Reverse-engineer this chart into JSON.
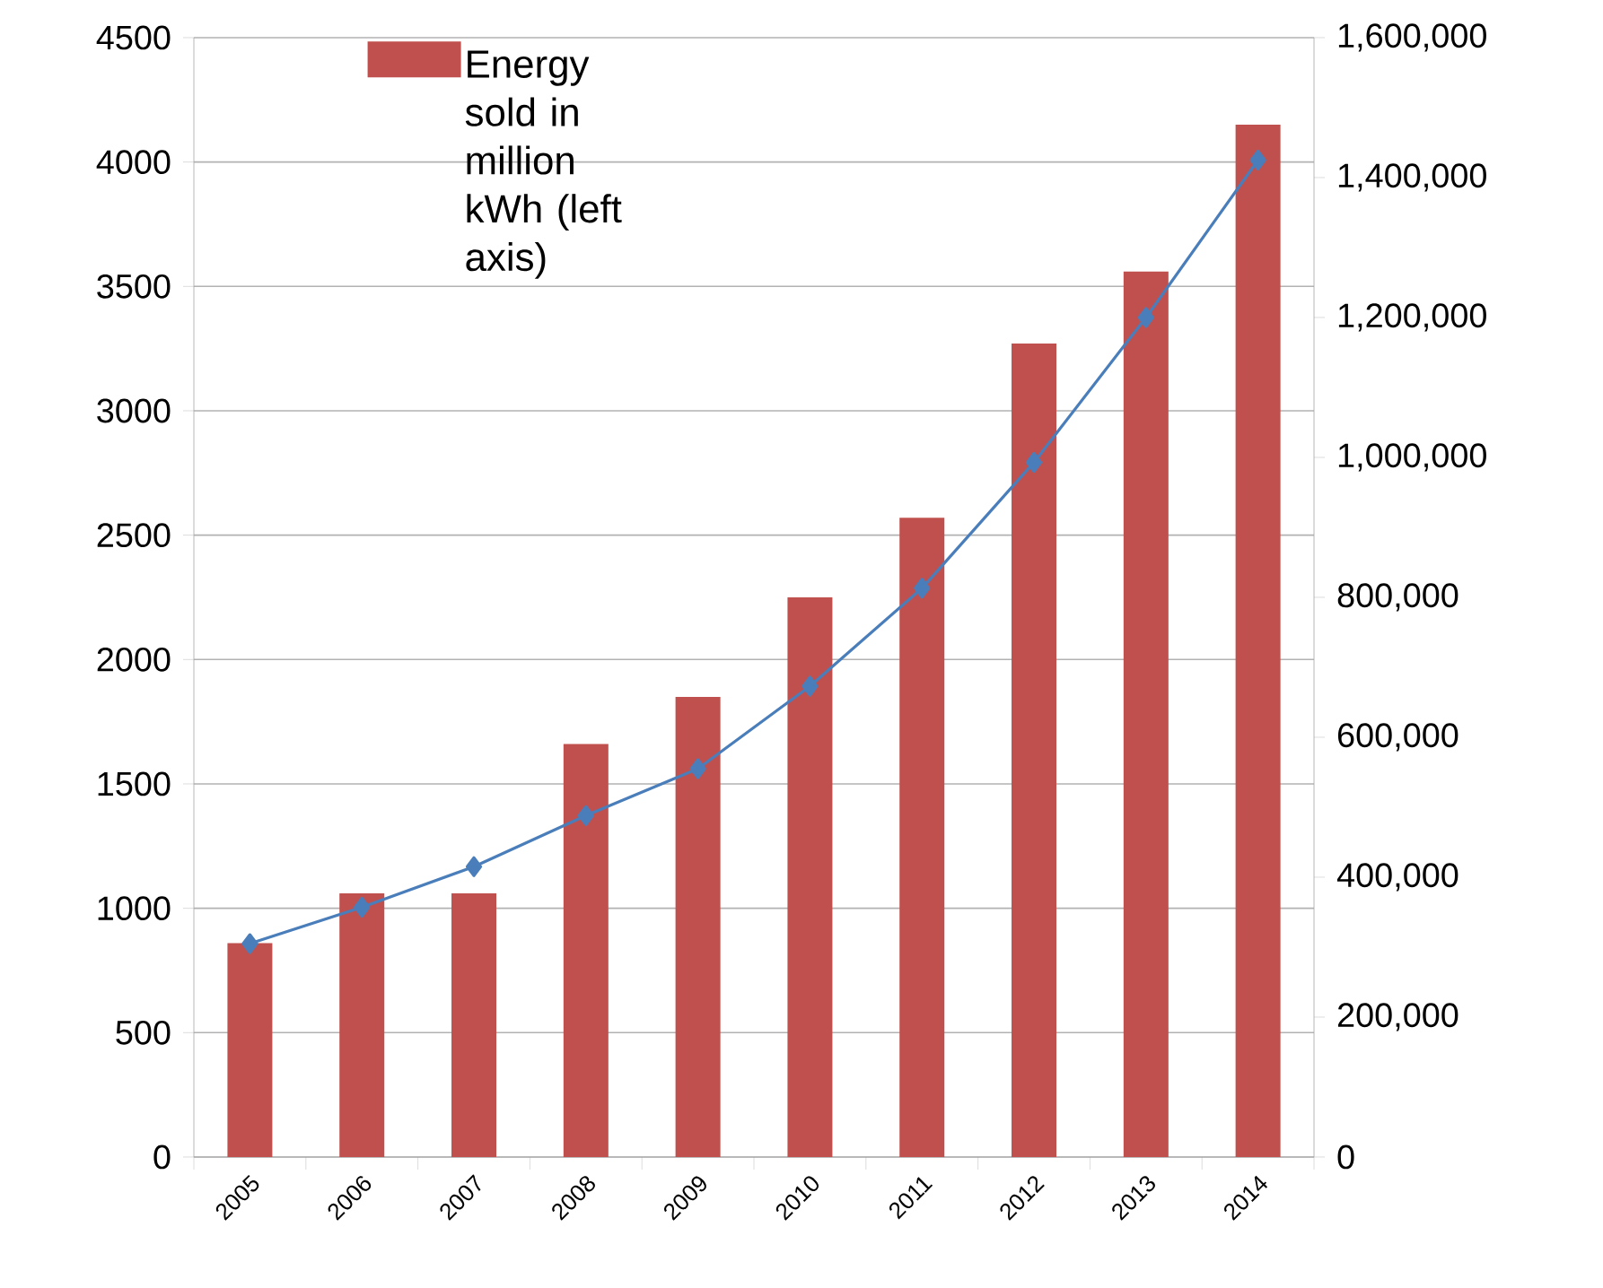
{
  "chart_data": {
    "type": "bar",
    "categories": [
      "2005",
      "2006",
      "2007",
      "2008",
      "2009",
      "2010",
      "2011",
      "2012",
      "2013",
      "2014"
    ],
    "series": [
      {
        "name": "Energy sold in million kWh (left axis)",
        "color": "#c0504d",
        "values": [
          860,
          1060,
          1060,
          1660,
          1850,
          2250,
          2570,
          3270,
          3560,
          4150
        ]
      },
      {
        "type": "line",
        "axis": "y2",
        "color": "#4a7ebb",
        "marker": "diamond",
        "values": [
          305000,
          357000,
          415000,
          488000,
          555000,
          673000,
          813000,
          993000,
          1200000,
          1425000
        ]
      }
    ],
    "ylim": [
      0,
      4500
    ],
    "yticks": [
      0,
      500,
      1000,
      1500,
      2000,
      2500,
      3000,
      3500,
      4000,
      4500
    ],
    "y2lim": [
      0,
      1600000
    ],
    "y2ticks": [
      0,
      {
        "value": 200000,
        "label": "200,000"
      },
      {
        "value": 400000,
        "label": "400,000"
      },
      {
        "value": 600000,
        "label": "600,000"
      },
      {
        "value": 800000,
        "label": "800,000"
      },
      {
        "value": 1000000,
        "label": "1,000,000"
      },
      {
        "value": 1200000,
        "label": "1,200,000"
      },
      {
        "value": 1400000,
        "label": "1,400,000"
      },
      {
        "value": 1600000,
        "label": "1,600,000"
      }
    ],
    "grid": "y",
    "legend": "top left"
  }
}
